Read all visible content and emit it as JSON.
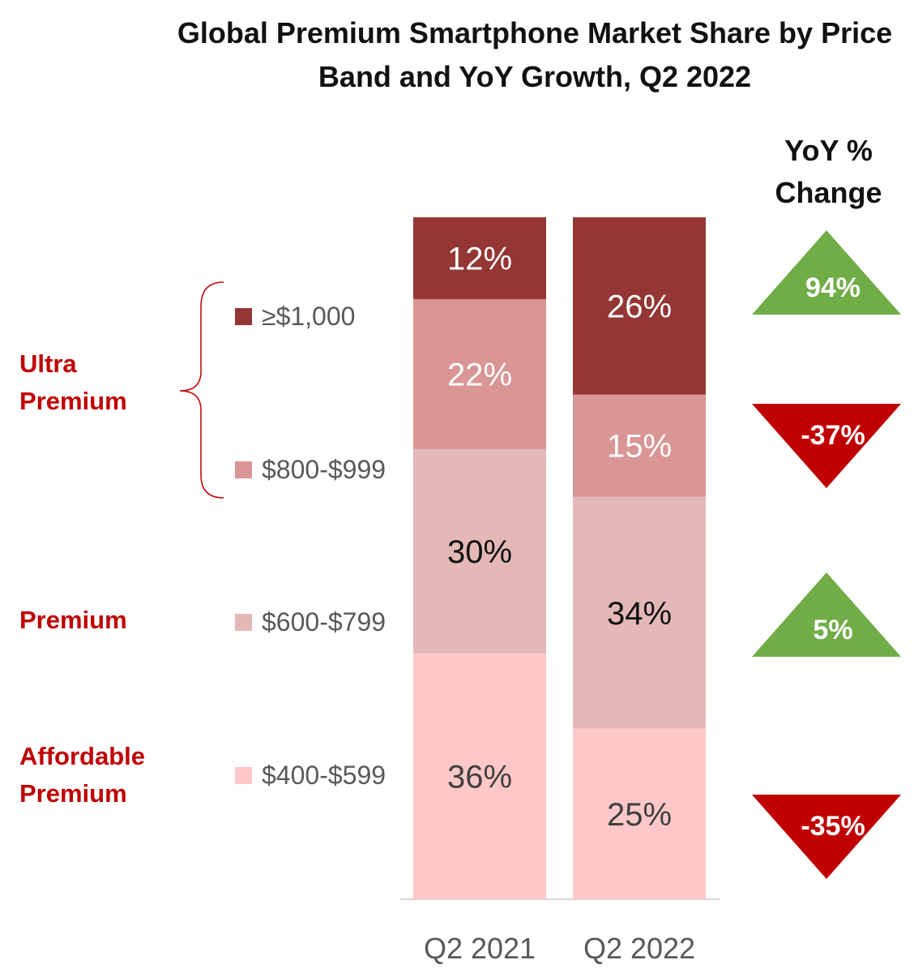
{
  "chart_data": {
    "type": "bar",
    "stacked": true,
    "title": "Global Premium Smartphone Market Share by Price Band and YoY Growth, Q2 2022",
    "categories": [
      "Q2 2021",
      "Q2 2022"
    ],
    "series": [
      {
        "name": "$400-$599",
        "values": [
          36,
          25
        ],
        "color": "#fec8c8",
        "label_color": "#404040"
      },
      {
        "name": "$600-$799",
        "values": [
          30,
          34
        ],
        "color": "#e5b8b8",
        "label_color": "#111111"
      },
      {
        "name": "$800-$999",
        "values": [
          22,
          15
        ],
        "color": "#d99694",
        "label_color": "#ffffff"
      },
      {
        "name": "≥$1,000",
        "values": [
          12,
          26
        ],
        "color": "#943634",
        "label_color": "#ffffff"
      }
    ],
    "value_suffix": "%",
    "ylim": [
      0,
      100
    ],
    "yoy": {
      "header": "YoY % Change",
      "items": [
        {
          "band": "≥$1,000",
          "label": "94%",
          "direction": "up",
          "color": "#70ad47"
        },
        {
          "band": "$800-$999",
          "label": "-37%",
          "direction": "down",
          "color": "#c00000"
        },
        {
          "band": "$600-$799",
          "label": "5%",
          "direction": "up",
          "color": "#70ad47"
        },
        {
          "band": "$400-$599",
          "label": "-35%",
          "direction": "down",
          "color": "#c00000"
        }
      ]
    },
    "groups": [
      {
        "label": "Ultra Premium",
        "bands": [
          "≥$1,000",
          "$800-$999"
        ],
        "color": "#c00000"
      },
      {
        "label": "Premium",
        "bands": [
          "$600-$799"
        ],
        "color": "#c00000"
      },
      {
        "label": "Affordable Premium",
        "bands": [
          "$400-$599"
        ],
        "color": "#c00000"
      }
    ],
    "legend": [
      {
        "label": "≥$1,000",
        "color": "#943634"
      },
      {
        "label": "$800-$999",
        "color": "#d99694"
      },
      {
        "label": "$600-$799",
        "color": "#e5b8b8"
      },
      {
        "label": "$400-$599",
        "color": "#fec8c8"
      }
    ]
  }
}
